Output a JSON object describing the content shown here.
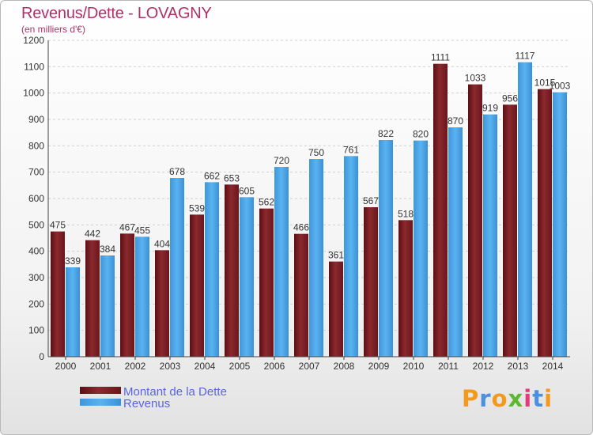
{
  "header": {
    "title": "Revenus/Dette - LOVAGNY",
    "subtitle": "(en milliers d'€)"
  },
  "logo": {
    "text": "Proxiti",
    "letters": [
      "P",
      "r",
      "o",
      "x",
      "i",
      "t",
      "i"
    ]
  },
  "chart_data": {
    "type": "bar",
    "title": "Revenus/Dette - LOVAGNY",
    "subtitle": "(en milliers d'€)",
    "xlabel": "",
    "ylabel": "",
    "ylim": [
      0,
      1200
    ],
    "yticks": [
      0,
      100,
      200,
      300,
      400,
      500,
      600,
      700,
      800,
      900,
      1000,
      1100,
      1200
    ],
    "grid": true,
    "legend_position": "bottom-left",
    "categories": [
      "2000",
      "2001",
      "2002",
      "2003",
      "2004",
      "2005",
      "2006",
      "2007",
      "2008",
      "2009",
      "2010",
      "2011",
      "2012",
      "2013",
      "2014"
    ],
    "series": [
      {
        "name": "Montant de la Dette",
        "color": "#7a1f24",
        "values": [
          475,
          442,
          467,
          404,
          539,
          653,
          562,
          466,
          361,
          567,
          518,
          1111,
          1033,
          956,
          1015
        ]
      },
      {
        "name": "Revenus",
        "color": "#4aa3e4",
        "values": [
          339,
          384,
          455,
          678,
          662,
          605,
          720,
          750,
          761,
          822,
          820,
          870,
          919,
          1117,
          1003
        ]
      }
    ]
  }
}
